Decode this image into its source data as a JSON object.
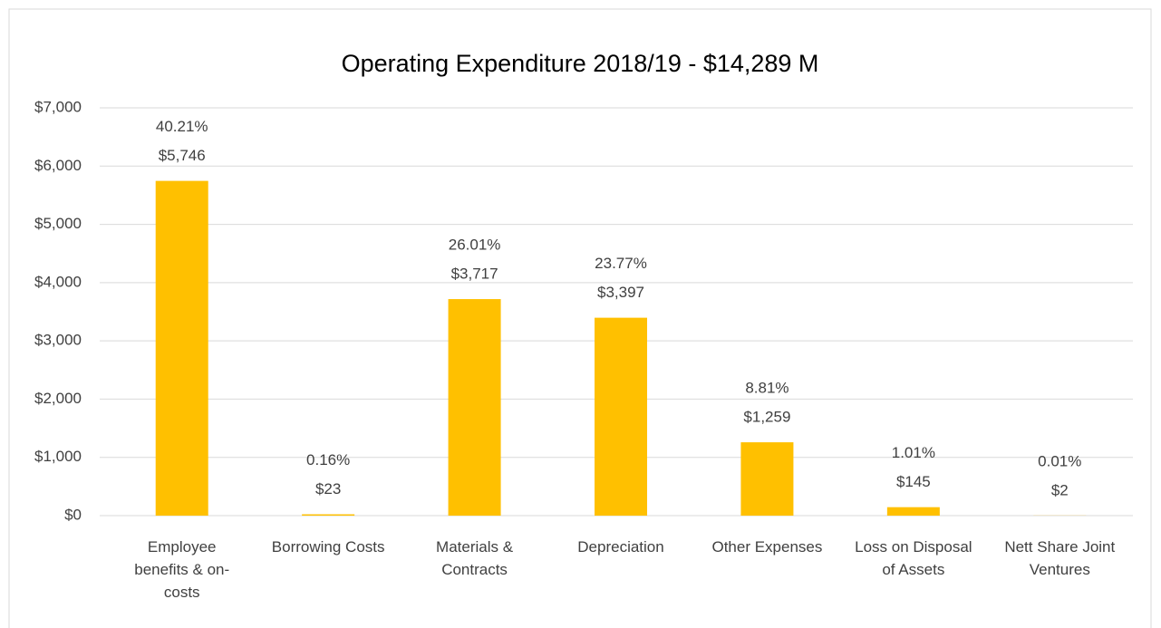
{
  "chart_data": {
    "type": "bar",
    "title": "Operating Expenditure 2018/19 - $14,289 M",
    "categories": [
      "Employee benefits & on-costs",
      "Borrowing Costs",
      "Materials & Contracts",
      "Depreciation",
      "Other Expenses",
      "Loss on Disposal of Assets",
      "Nett Share Joint Ventures"
    ],
    "values": [
      5746,
      23,
      3717,
      3397,
      1259,
      145,
      2
    ],
    "value_labels": [
      "$5,746",
      "$23",
      "$3,717",
      "$3,397",
      "$1,259",
      "$145",
      "$2"
    ],
    "percent_labels": [
      "40.21%",
      "0.16%",
      "26.01%",
      "23.77%",
      "8.81%",
      "1.01%",
      "0.01%"
    ],
    "color": "#ffc000",
    "ylim": [
      0,
      7000
    ],
    "yticks": [
      {
        "value": 0,
        "label": "$0"
      },
      {
        "value": 1000,
        "label": "$1,000"
      },
      {
        "value": 2000,
        "label": "$2,000"
      },
      {
        "value": 3000,
        "label": "$3,000"
      },
      {
        "value": 4000,
        "label": "$4,000"
      },
      {
        "value": 5000,
        "label": "$5,000"
      },
      {
        "value": 6000,
        "label": "$6,000"
      },
      {
        "value": 7000,
        "label": "$7,000"
      }
    ],
    "grid": true
  }
}
